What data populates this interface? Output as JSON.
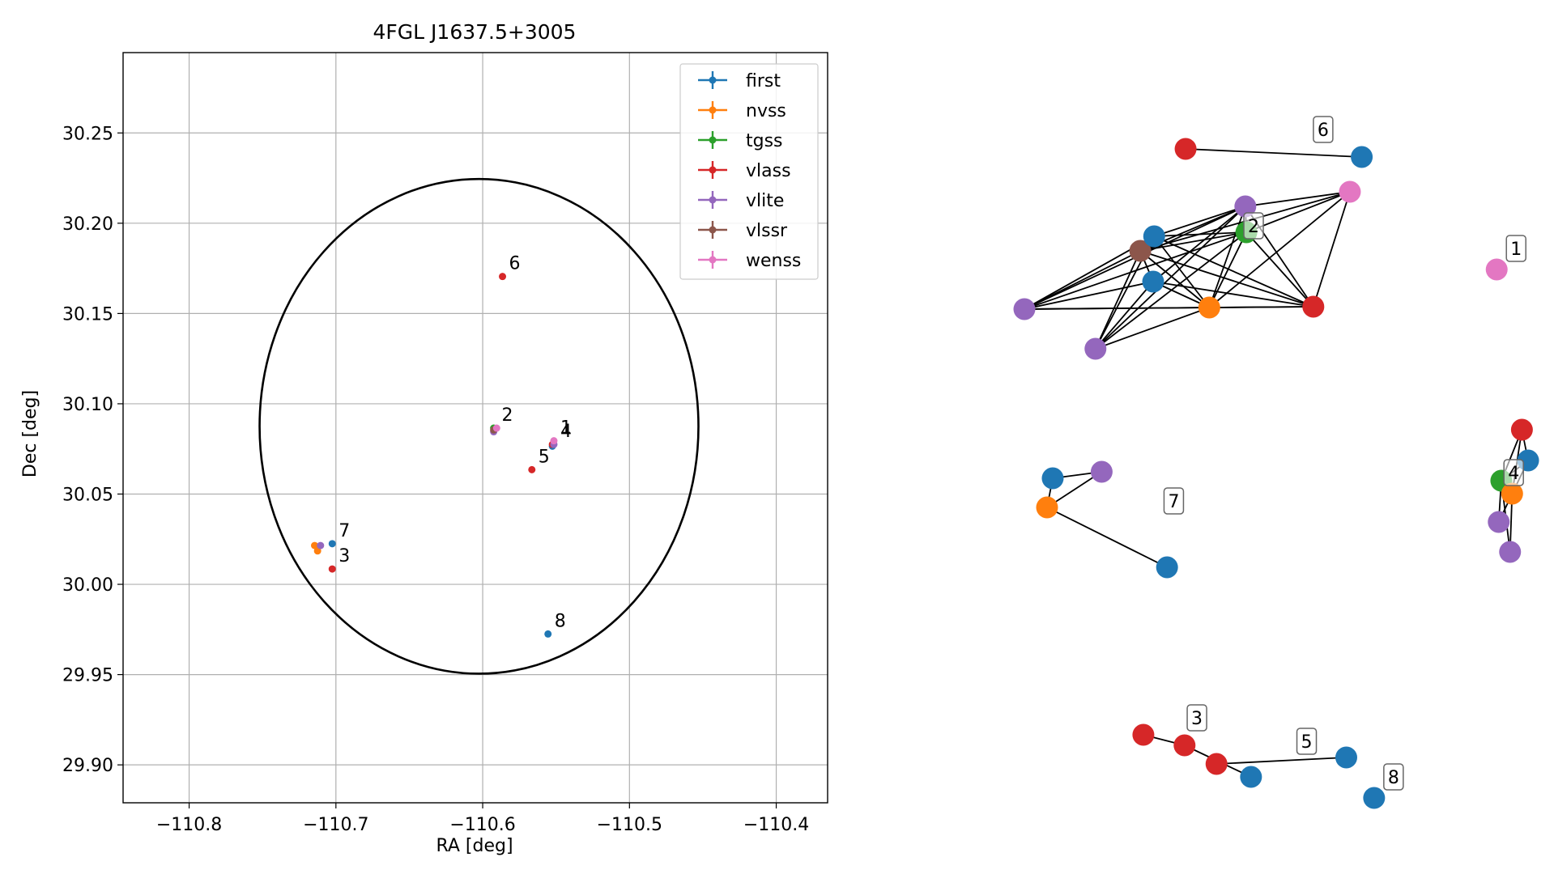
{
  "colors": {
    "first": "#1f77b4",
    "nvss": "#ff7f0e",
    "tgss": "#2ca02c",
    "vlass": "#d62728",
    "vlite": "#9467bd",
    "vlssr": "#8c564b",
    "wenss": "#e377c2",
    "axis": "#000000",
    "grid": "#b0b0b0"
  },
  "chart_data": [
    {
      "type": "scatter",
      "title": "4FGL J1637.5+3005",
      "xlabel": "RA [deg]",
      "ylabel": "Dec [deg]",
      "xlim": [
        -110.845,
        -110.365
      ],
      "ylim": [
        29.879,
        30.2945
      ],
      "xticks": [
        -110.8,
        -110.7,
        -110.6,
        -110.5,
        -110.4
      ],
      "xtick_labels": [
        "−110.8",
        "−110.7",
        "−110.6",
        "−110.5",
        "−110.4"
      ],
      "yticks": [
        29.9,
        29.95,
        30.0,
        30.05,
        30.1,
        30.15,
        30.2,
        30.25
      ],
      "ytick_labels": [
        "29.90",
        "29.95",
        "30.00",
        "30.05",
        "30.10",
        "30.15",
        "30.20",
        "30.25"
      ],
      "grid": true,
      "legend_position": "upper right",
      "legend": [
        "first",
        "nvss",
        "tgss",
        "vlass",
        "vlite",
        "vlssr",
        "wenss"
      ],
      "ellipse": {
        "center": [
          -110.6025,
          30.0875
        ],
        "semi_axis_ra": 0.1495,
        "semi_axis_dec": 0.137
      },
      "series": [
        {
          "name": "first",
          "points": [
            [
              -110.7025,
              30.0225
            ],
            [
              -110.5555,
              29.9725
            ],
            [
              -110.5525,
              30.0765
            ]
          ]
        },
        {
          "name": "nvss",
          "points": [
            [
              -110.7125,
              30.0185
            ],
            [
              -110.7145,
              30.0215
            ]
          ]
        },
        {
          "name": "tgss",
          "points": [
            [
              -110.5925,
              30.0865
            ]
          ]
        },
        {
          "name": "vlass",
          "points": [
            [
              -110.5865,
              30.1705
            ],
            [
              -110.7025,
              30.0085
            ],
            [
              -110.5665,
              30.0635
            ],
            [
              -110.5525,
              30.0775
            ]
          ]
        },
        {
          "name": "vlite",
          "points": [
            [
              -110.7105,
              30.0215
            ],
            [
              -110.5925,
              30.0845
            ],
            [
              -110.5515,
              30.0775
            ]
          ]
        },
        {
          "name": "vlssr",
          "points": [
            [
              -110.5925,
              30.0855
            ]
          ]
        },
        {
          "name": "wenss",
          "points": [
            [
              -110.5905,
              30.0865
            ],
            [
              -110.5515,
              30.0795
            ]
          ]
        }
      ],
      "annotations": [
        {
          "text": "6",
          "ra": -110.5865,
          "dec": 30.1705
        },
        {
          "text": "2",
          "ra": -110.5915,
          "dec": 30.0865
        },
        {
          "text": "1",
          "ra": -110.5515,
          "dec": 30.0795
        },
        {
          "text": "4",
          "ra": -110.5515,
          "dec": 30.0775
        },
        {
          "text": "5",
          "ra": -110.5665,
          "dec": 30.0635
        },
        {
          "text": "7",
          "ra": -110.7025,
          "dec": 30.0225
        },
        {
          "text": "3",
          "ra": -110.7025,
          "dec": 30.0085
        },
        {
          "text": "8",
          "ra": -110.5555,
          "dec": 29.9725
        }
      ]
    },
    {
      "type": "network",
      "components": [
        {
          "label": "6",
          "nodes": [
            [
              "vlass",
              0.313,
              0.141
            ],
            [
              "first",
              0.655,
              0.151
            ]
          ],
          "edges": [
            [
              0,
              1
            ]
          ]
        },
        {
          "label": "1",
          "nodes": [
            [
              "wenss",
              0.917,
              0.29
            ]
          ],
          "edges": []
        },
        {
          "label": "2",
          "nodes": [
            [
              "vlssr",
              0.225,
              0.267
            ],
            [
              "first",
              0.252,
              0.249
            ],
            [
              "tgss",
              0.431,
              0.244
            ],
            [
              "vlite",
              0.429,
              0.212
            ],
            [
              "wenss",
              0.632,
              0.194
            ],
            [
              "first",
              0.25,
              0.305
            ],
            [
              "nvss",
              0.359,
              0.337
            ],
            [
              "vlass",
              0.561,
              0.336
            ],
            [
              "vlite",
              0.0,
              0.339
            ],
            [
              "vlite",
              0.138,
              0.388
            ]
          ],
          "edges": [
            [
              0,
              1
            ],
            [
              0,
              2
            ],
            [
              0,
              3
            ],
            [
              0,
              4
            ],
            [
              0,
              5
            ],
            [
              0,
              6
            ],
            [
              0,
              7
            ],
            [
              0,
              8
            ],
            [
              0,
              9
            ],
            [
              1,
              2
            ],
            [
              1,
              3
            ],
            [
              1,
              6
            ],
            [
              1,
              7
            ],
            [
              1,
              8
            ],
            [
              1,
              9
            ],
            [
              2,
              3
            ],
            [
              2,
              4
            ],
            [
              2,
              6
            ],
            [
              2,
              7
            ],
            [
              2,
              8
            ],
            [
              2,
              9
            ],
            [
              3,
              4
            ],
            [
              3,
              5
            ],
            [
              3,
              6
            ],
            [
              3,
              7
            ],
            [
              3,
              8
            ],
            [
              3,
              9
            ],
            [
              4,
              6
            ],
            [
              4,
              7
            ],
            [
              5,
              6
            ],
            [
              5,
              7
            ],
            [
              5,
              8
            ],
            [
              5,
              9
            ],
            [
              6,
              7
            ],
            [
              6,
              8
            ],
            [
              6,
              9
            ],
            [
              7,
              8
            ]
          ]
        },
        {
          "label": "7",
          "nodes": [
            [
              "first",
              0.055,
              0.548
            ],
            [
              "vlite",
              0.15,
              0.54
            ],
            [
              "nvss",
              0.044,
              0.584
            ],
            [
              "first",
              0.277,
              0.658
            ]
          ],
          "edges": [
            [
              0,
              1
            ],
            [
              0,
              2
            ],
            [
              1,
              2
            ],
            [
              2,
              3
            ]
          ]
        },
        {
          "label": "4",
          "nodes": [
            [
              "vlass",
              0.966,
              0.488
            ],
            [
              "first",
              0.978,
              0.526
            ],
            [
              "tgss",
              0.926,
              0.551
            ],
            [
              "nvss",
              0.947,
              0.567
            ],
            [
              "vlite",
              0.921,
              0.602
            ],
            [
              "vlite",
              0.943,
              0.639
            ]
          ],
          "edges": [
            [
              0,
              1
            ],
            [
              0,
              2
            ],
            [
              0,
              3
            ],
            [
              1,
              2
            ],
            [
              1,
              4
            ],
            [
              2,
              3
            ],
            [
              2,
              4
            ],
            [
              2,
              5
            ],
            [
              3,
              5
            ]
          ]
        },
        {
          "label": "3",
          "nodes": [
            [
              "vlass",
              0.231,
              0.865
            ],
            [
              "vlass",
              0.311,
              0.878
            ],
            [
              "first",
              0.44,
              0.917
            ]
          ],
          "edges": [
            [
              0,
              1
            ],
            [
              1,
              2
            ]
          ]
        },
        {
          "label": "5",
          "nodes": [
            [
              "vlass",
              0.373,
              0.901
            ],
            [
              "first",
              0.625,
              0.893
            ]
          ],
          "edges": [
            [
              0,
              1
            ]
          ]
        },
        {
          "label": "8",
          "nodes": [
            [
              "first",
              0.679,
              0.943
            ]
          ],
          "edges": []
        }
      ]
    }
  ]
}
